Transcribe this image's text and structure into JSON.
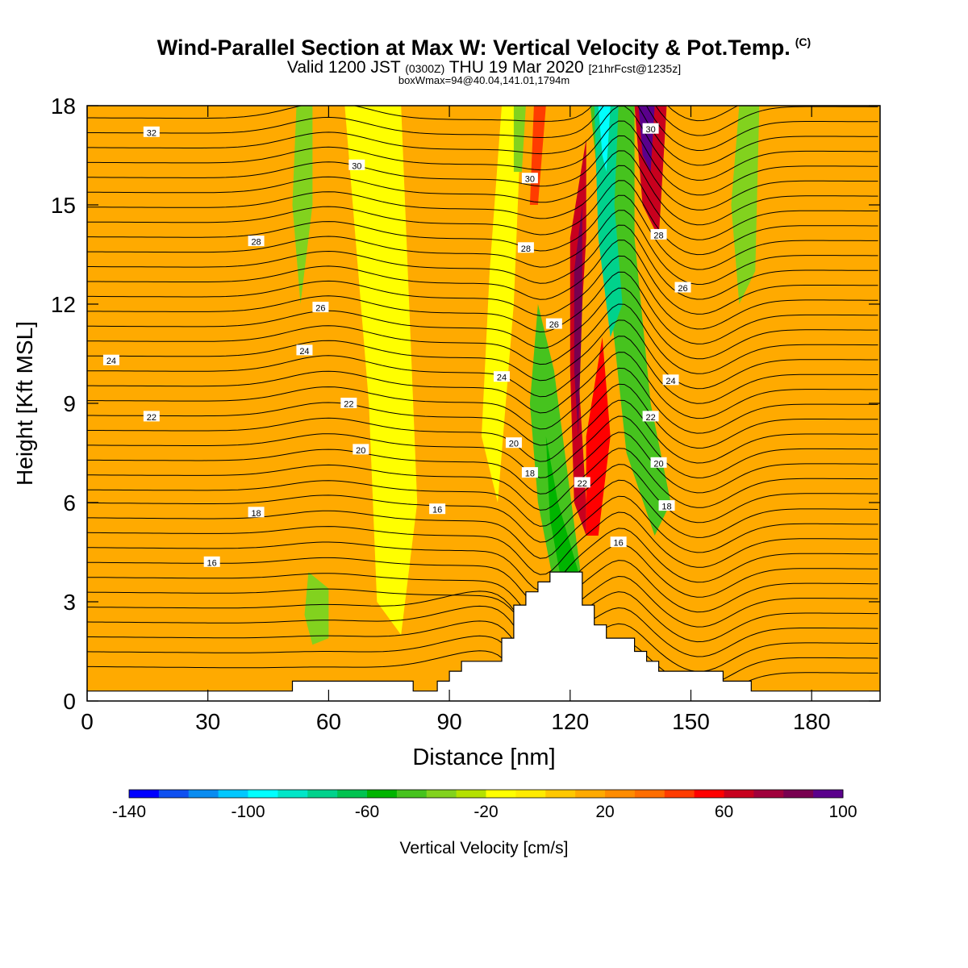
{
  "title": {
    "main": "Wind-Parallel Section at Max W: Vertical Velocity & Pot.Temp.",
    "main_mark": "(C)",
    "valid_a": "Valid 1200 JST",
    "valid_utc": "(0300Z)",
    "valid_b": "THU 19 Mar 2020",
    "valid_fcst": "[21hrFcst@1235z]",
    "box": "boxWmax=94@40.04,141.01,1794m"
  },
  "chart_data": {
    "type": "heatmap",
    "xlabel": "Distance [nm]",
    "ylabel": "Height [Kft MSL]",
    "xlim": [
      0,
      197
    ],
    "ylim": [
      0,
      18
    ],
    "xticks": [
      0,
      30,
      60,
      90,
      120,
      150,
      180
    ],
    "yticks": [
      0,
      3,
      6,
      9,
      12,
      15,
      18
    ],
    "colorbar": {
      "label": "Vertical Velocity [cm/s]",
      "ticks": [
        -140,
        -100,
        -60,
        -20,
        20,
        60,
        100
      ],
      "min": -140,
      "step": 10,
      "colors": [
        "#0000ff",
        "#0f50f0",
        "#0a8cf0",
        "#00c8ff",
        "#00ffff",
        "#00e6c8",
        "#00d28c",
        "#00c350",
        "#00b400",
        "#46c31e",
        "#82d21e",
        "#b4e100",
        "#ffff00",
        "#ffeb00",
        "#ffc800",
        "#ffaa00",
        "#ff8c00",
        "#ff6e00",
        "#ff3c00",
        "#ff0000",
        "#c8001e",
        "#a0003c",
        "#780050",
        "#5a008c"
      ]
    },
    "velocity_regions": [
      {
        "value": 10,
        "polygon": [
          [
            0,
            0.3
          ],
          [
            197,
            0.3
          ],
          [
            197,
            18
          ],
          [
            0,
            18
          ]
        ]
      },
      {
        "value": 15,
        "polygon": [
          [
            0,
            18
          ],
          [
            10,
            18
          ],
          [
            20,
            12
          ],
          [
            45,
            7
          ],
          [
            40,
            4
          ],
          [
            30,
            3
          ],
          [
            0,
            5
          ]
        ]
      },
      {
        "value": 15,
        "polygon": [
          [
            60,
            18
          ],
          [
            70,
            18
          ],
          [
            68,
            10
          ],
          [
            62,
            5
          ],
          [
            55,
            3
          ],
          [
            52,
            8
          ],
          [
            56,
            14
          ]
        ]
      },
      {
        "value": 15,
        "polygon": [
          [
            98,
            4.5
          ],
          [
            106,
            4
          ],
          [
            108,
            2.5
          ],
          [
            100,
            1.5
          ],
          [
            96,
            3
          ]
        ]
      },
      {
        "value": 15,
        "polygon": [
          [
            150,
            18
          ],
          [
            166,
            18
          ],
          [
            168,
            11
          ],
          [
            158,
            7
          ],
          [
            148,
            9
          ],
          [
            146,
            14
          ]
        ]
      },
      {
        "value": 15,
        "polygon": [
          [
            170,
            8
          ],
          [
            185,
            7
          ],
          [
            190,
            4
          ],
          [
            180,
            1
          ],
          [
            172,
            3
          ]
        ]
      },
      {
        "value": -15,
        "polygon": [
          [
            64,
            18
          ],
          [
            78,
            18
          ],
          [
            80,
            12
          ],
          [
            82,
            6
          ],
          [
            78,
            2
          ],
          [
            72,
            3
          ],
          [
            70,
            9
          ]
        ]
      },
      {
        "value": -15,
        "polygon": [
          [
            103,
            18
          ],
          [
            108,
            18
          ],
          [
            106,
            12
          ],
          [
            102,
            6
          ],
          [
            98,
            8
          ],
          [
            100,
            13
          ]
        ]
      },
      {
        "value": -35,
        "polygon": [
          [
            52,
            18
          ],
          [
            56,
            18
          ],
          [
            56,
            15
          ],
          [
            53,
            12
          ],
          [
            51,
            15
          ]
        ]
      },
      {
        "value": -35,
        "polygon": [
          [
            55,
            3.9
          ],
          [
            60,
            3.4
          ],
          [
            60,
            1.9
          ],
          [
            56,
            1.7
          ],
          [
            54,
            2.6
          ]
        ]
      },
      {
        "value": -35,
        "polygon": [
          [
            162,
            18
          ],
          [
            167,
            18
          ],
          [
            166,
            13
          ],
          [
            162,
            12
          ],
          [
            160,
            15
          ]
        ]
      },
      {
        "value": -35,
        "polygon": [
          [
            106,
            18
          ],
          [
            109,
            18
          ],
          [
            108,
            16
          ],
          [
            106,
            16
          ]
        ]
      },
      {
        "value": -45,
        "polygon": [
          [
            112,
            12
          ],
          [
            116,
            10
          ],
          [
            123,
            3.5
          ],
          [
            116,
            3.5
          ],
          [
            112,
            6
          ],
          [
            110,
            9
          ]
        ]
      },
      {
        "value": -55,
        "polygon": [
          [
            114,
            8
          ],
          [
            117,
            6
          ],
          [
            123,
            3.5
          ],
          [
            118,
            3.5
          ],
          [
            115,
            5.5
          ]
        ]
      },
      {
        "value": -45,
        "polygon": [
          [
            125,
            18
          ],
          [
            136,
            18
          ],
          [
            136,
            14
          ],
          [
            140,
            9
          ],
          [
            145,
            6
          ],
          [
            141,
            5
          ],
          [
            134,
            7.5
          ],
          [
            130,
            12
          ]
        ]
      },
      {
        "value": -75,
        "polygon": [
          [
            126,
            18
          ],
          [
            132,
            18
          ],
          [
            131,
            15
          ],
          [
            133,
            12
          ],
          [
            130,
            11
          ],
          [
            127,
            14
          ]
        ]
      },
      {
        "value": -95,
        "polygon": [
          [
            127,
            18
          ],
          [
            130,
            18
          ],
          [
            129,
            16
          ],
          [
            128,
            16.5
          ]
        ]
      },
      {
        "value": 45,
        "polygon": [
          [
            111,
            18
          ],
          [
            114,
            18
          ],
          [
            112,
            15
          ],
          [
            110,
            15
          ]
        ]
      },
      {
        "value": 65,
        "polygon": [
          [
            120,
            14
          ],
          [
            124,
            17
          ],
          [
            124,
            14
          ],
          [
            122,
            10
          ],
          [
            124,
            6
          ],
          [
            124,
            5
          ],
          [
            121,
            6
          ],
          [
            120,
            10
          ]
        ]
      },
      {
        "value": 85,
        "polygon": [
          [
            121,
            13
          ],
          [
            123,
            15
          ],
          [
            123,
            12
          ],
          [
            122,
            8
          ],
          [
            121,
            10
          ]
        ]
      },
      {
        "value": 55,
        "polygon": [
          [
            124,
            8
          ],
          [
            128,
            11
          ],
          [
            130,
            8
          ],
          [
            127,
            5
          ],
          [
            124,
            5
          ]
        ]
      },
      {
        "value": 65,
        "polygon": [
          [
            136,
            18
          ],
          [
            144,
            18
          ],
          [
            142,
            14
          ],
          [
            138,
            15
          ]
        ]
      },
      {
        "value": 95,
        "polygon": [
          [
            137,
            18
          ],
          [
            141,
            18
          ],
          [
            140,
            16
          ],
          [
            138,
            16.5
          ]
        ]
      }
    ],
    "contour_labels": [
      {
        "value": "32",
        "x": 16,
        "y": 17.2
      },
      {
        "value": "30",
        "x": 67,
        "y": 16.2
      },
      {
        "value": "30",
        "x": 110,
        "y": 15.8
      },
      {
        "value": "30",
        "x": 140,
        "y": 17.3
      },
      {
        "value": "28",
        "x": 42,
        "y": 13.9
      },
      {
        "value": "28",
        "x": 109,
        "y": 13.7
      },
      {
        "value": "28",
        "x": 142,
        "y": 14.1
      },
      {
        "value": "26",
        "x": 58,
        "y": 11.9
      },
      {
        "value": "26",
        "x": 116,
        "y": 11.4
      },
      {
        "value": "26",
        "x": 148,
        "y": 12.5
      },
      {
        "value": "24",
        "x": 6,
        "y": 10.3
      },
      {
        "value": "24",
        "x": 54,
        "y": 10.6
      },
      {
        "value": "24",
        "x": 103,
        "y": 9.8
      },
      {
        "value": "24",
        "x": 145,
        "y": 9.7
      },
      {
        "value": "22",
        "x": 16,
        "y": 8.6
      },
      {
        "value": "22",
        "x": 65,
        "y": 9.0
      },
      {
        "value": "22",
        "x": 140,
        "y": 8.6
      },
      {
        "value": "22",
        "x": 123,
        "y": 6.6
      },
      {
        "value": "20",
        "x": 68,
        "y": 7.6
      },
      {
        "value": "20",
        "x": 106,
        "y": 7.8
      },
      {
        "value": "20",
        "x": 142,
        "y": 7.2
      },
      {
        "value": "18",
        "x": 42,
        "y": 5.7
      },
      {
        "value": "18",
        "x": 110,
        "y": 6.9
      },
      {
        "value": "18",
        "x": 144,
        "y": 5.9
      },
      {
        "value": "16",
        "x": 31,
        "y": 4.2
      },
      {
        "value": "16",
        "x": 87,
        "y": 5.8
      },
      {
        "value": "16",
        "x": 132,
        "y": 4.8
      }
    ],
    "terrain": [
      [
        0,
        0.3
      ],
      [
        51,
        0.3
      ],
      [
        51,
        0.6
      ],
      [
        81,
        0.6
      ],
      [
        81,
        0.3
      ],
      [
        87,
        0.3
      ],
      [
        87,
        0.6
      ],
      [
        90,
        0.6
      ],
      [
        90,
        0.9
      ],
      [
        93,
        0.9
      ],
      [
        93,
        1.2
      ],
      [
        103,
        1.2
      ],
      [
        103,
        1.9
      ],
      [
        106,
        1.9
      ],
      [
        106,
        2.9
      ],
      [
        109,
        2.9
      ],
      [
        109,
        3.3
      ],
      [
        112,
        3.3
      ],
      [
        112,
        3.6
      ],
      [
        115,
        3.6
      ],
      [
        115,
        3.9
      ],
      [
        123,
        3.9
      ],
      [
        123,
        2.9
      ],
      [
        126,
        2.9
      ],
      [
        126,
        2.3
      ],
      [
        129,
        2.3
      ],
      [
        129,
        1.9
      ],
      [
        136,
        1.9
      ],
      [
        136,
        1.5
      ],
      [
        139,
        1.5
      ],
      [
        139,
        1.2
      ],
      [
        142,
        1.2
      ],
      [
        142,
        0.9
      ],
      [
        158,
        0.9
      ],
      [
        158,
        0.6
      ],
      [
        165,
        0.6
      ],
      [
        165,
        0.3
      ],
      [
        197,
        0.3
      ]
    ]
  }
}
